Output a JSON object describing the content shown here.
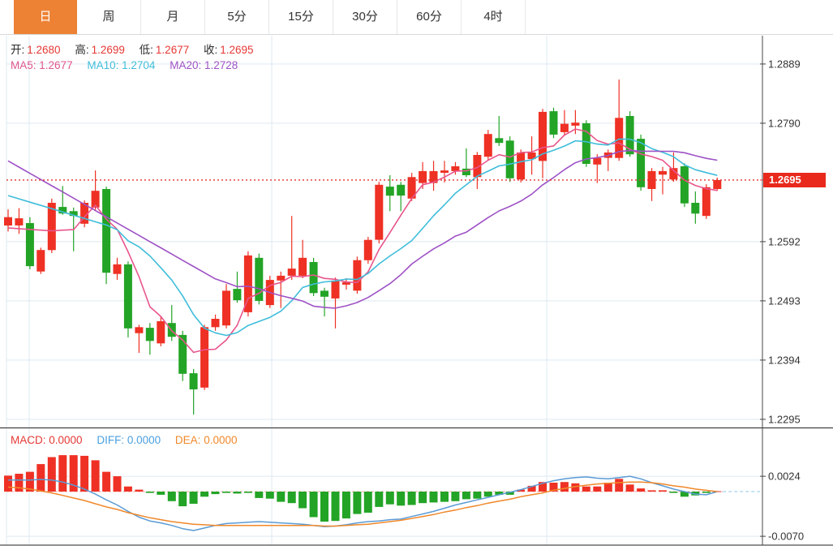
{
  "tabs": {
    "items": [
      {
        "id": "day",
        "label": "日",
        "active": true
      },
      {
        "id": "week",
        "label": "周",
        "active": false
      },
      {
        "id": "month",
        "label": "月",
        "active": false
      },
      {
        "id": "5min",
        "label": "5分",
        "active": false
      },
      {
        "id": "15min",
        "label": "15分",
        "active": false
      },
      {
        "id": "30min",
        "label": "30分",
        "active": false
      },
      {
        "id": "60min",
        "label": "60分",
        "active": false
      },
      {
        "id": "4hour",
        "label": "4时",
        "active": false
      }
    ]
  },
  "ohlc": {
    "open_label": "开:",
    "open": "1.2680",
    "high_label": "高:",
    "high": "1.2699",
    "low_label": "低:",
    "low": "1.2677",
    "close_label": "收:",
    "close": "1.2695"
  },
  "ma_legend": {
    "ma5_label": "MA5:",
    "ma5_value": "1.2677",
    "ma10_label": "MA10:",
    "ma10_value": "1.2704",
    "ma20_label": "MA20:",
    "ma20_value": "1.2728"
  },
  "macd_legend": {
    "macd_label": "MACD:",
    "macd_value": "0.0000",
    "diff_label": "DIFF:",
    "diff_value": "0.0000",
    "dea_label": "DEA:",
    "dea_value": "0.0000"
  },
  "price_axis": {
    "ticks": [
      "1.2889",
      "1.2790",
      "1.2592",
      "1.2493",
      "1.2394",
      "1.2295"
    ],
    "tick_values": [
      1.2889,
      1.279,
      1.2592,
      1.2493,
      1.2394,
      1.2295
    ],
    "last_price": "1.2695",
    "last_price_value": 1.2695
  },
  "macd_axis": {
    "ticks": [
      "0.0024",
      "-0.0070"
    ],
    "tick_values": [
      0.0024,
      -0.007
    ]
  },
  "colors": {
    "up": "#ee3124",
    "down": "#23a426",
    "ma5": "#e8558c",
    "ma10": "#3fbdda",
    "ma20": "#9e52c6",
    "diff_line": "#5b9bd5",
    "dea_line": "#f0882a",
    "tab_active": "#ed8235",
    "price_tag_bg": "#e8291c",
    "grid": "#dde9f2",
    "dotted_price": "#e03131",
    "axis_line": "#444444"
  },
  "chart_data": [
    {
      "type": "candlestick",
      "pane": "price",
      "title": "",
      "ylim": [
        1.2281,
        1.2936
      ],
      "yticks": [
        1.2889,
        1.279,
        1.2592,
        1.2493,
        1.2394,
        1.2295
      ],
      "current_price": 1.2695,
      "time_gridlines_x": [
        36,
        335,
        674
      ],
      "ma_overlays": [
        {
          "name": "MA5",
          "period": 5,
          "left_anchor": 1.2615,
          "color_key": "ma5"
        },
        {
          "name": "MA10",
          "period": 10,
          "left_anchor": 1.2669,
          "color_key": "ma10"
        },
        {
          "name": "MA20",
          "period": 20,
          "left_anchor": 1.2727,
          "color_key": "ma20"
        }
      ],
      "candles_ohlc": [
        [
          1.2619,
          1.2646,
          1.2609,
          1.2633
        ],
        [
          1.2619,
          1.2648,
          1.2605,
          1.2631
        ],
        [
          1.2623,
          1.2633,
          1.2546,
          1.2551
        ],
        [
          1.2542,
          1.2582,
          1.2538,
          1.2578
        ],
        [
          1.2578,
          1.2664,
          1.2573,
          1.2657
        ],
        [
          1.265,
          1.2685,
          1.2637,
          1.2639
        ],
        [
          1.2643,
          1.2649,
          1.2576,
          1.2635
        ],
        [
          1.2622,
          1.2661,
          1.2616,
          1.2657
        ],
        [
          1.2649,
          1.2711,
          1.2645,
          1.2677
        ],
        [
          1.268,
          1.2684,
          1.2521,
          1.254
        ],
        [
          1.2538,
          1.2565,
          1.2528,
          1.2554
        ],
        [
          1.2554,
          1.2559,
          1.2432,
          1.2447
        ],
        [
          1.2439,
          1.2453,
          1.2406,
          1.2449
        ],
        [
          1.2448,
          1.2456,
          1.2403,
          1.2426
        ],
        [
          1.2422,
          1.2466,
          1.2417,
          1.2459
        ],
        [
          1.2456,
          1.2486,
          1.2426,
          1.2433
        ],
        [
          1.2436,
          1.2443,
          1.2359,
          1.2371
        ],
        [
          1.2372,
          1.2379,
          1.2303,
          1.2345
        ],
        [
          1.2348,
          1.2453,
          1.2344,
          1.2449
        ],
        [
          1.2449,
          1.247,
          1.2443,
          1.2463
        ],
        [
          1.2452,
          1.2521,
          1.2447,
          1.251
        ],
        [
          1.2513,
          1.2542,
          1.249,
          1.2494
        ],
        [
          1.2474,
          1.2576,
          1.2467,
          1.2569
        ],
        [
          1.2565,
          1.2572,
          1.2487,
          1.2493
        ],
        [
          1.2486,
          1.2535,
          1.2481,
          1.2528
        ],
        [
          1.2527,
          1.2542,
          1.2481,
          1.2535
        ],
        [
          1.2535,
          1.2635,
          1.2528,
          1.2547
        ],
        [
          1.2535,
          1.2595,
          1.2531,
          1.2565
        ],
        [
          1.2558,
          1.2565,
          1.2501,
          1.2506
        ],
        [
          1.251,
          1.2515,
          1.2467,
          1.25
        ],
        [
          1.2497,
          1.2532,
          1.2447,
          1.2527
        ],
        [
          1.252,
          1.2531,
          1.2512,
          1.2524
        ],
        [
          1.251,
          1.2567,
          1.2505,
          1.2561
        ],
        [
          1.2561,
          1.26,
          1.2555,
          1.2595
        ],
        [
          1.2595,
          1.2692,
          1.2589,
          1.2687
        ],
        [
          1.2684,
          1.2703,
          1.2643,
          1.2669
        ],
        [
          1.2687,
          1.2692,
          1.2643,
          1.2669
        ],
        [
          1.2664,
          1.2707,
          1.266,
          1.27
        ],
        [
          1.269,
          1.2725,
          1.268,
          1.271
        ],
        [
          1.269,
          1.2727,
          1.2677,
          1.271
        ],
        [
          1.2707,
          1.2727,
          1.2691,
          1.2711
        ],
        [
          1.271,
          1.2725,
          1.2704,
          1.2718
        ],
        [
          1.2714,
          1.2748,
          1.27,
          1.2703
        ],
        [
          1.27,
          1.2742,
          1.268,
          1.2737
        ],
        [
          1.2734,
          1.2779,
          1.2729,
          1.2772
        ],
        [
          1.2765,
          1.2802,
          1.2752,
          1.2757
        ],
        [
          1.2761,
          1.2768,
          1.2692,
          1.2698
        ],
        [
          1.2696,
          1.2746,
          1.2691,
          1.2741
        ],
        [
          1.273,
          1.2768,
          1.2704,
          1.2741
        ],
        [
          1.2727,
          1.2814,
          1.2698,
          1.2809
        ],
        [
          1.281,
          1.2816,
          1.2765,
          1.2771
        ],
        [
          1.2775,
          1.2812,
          1.277,
          1.2789
        ],
        [
          1.2786,
          1.2812,
          1.2772,
          1.2791
        ],
        [
          1.279,
          1.2795,
          1.2717,
          1.2722
        ],
        [
          1.2721,
          1.2738,
          1.269,
          1.2732
        ],
        [
          1.2732,
          1.2746,
          1.271,
          1.2741
        ],
        [
          1.2732,
          1.2863,
          1.2727,
          1.2799
        ],
        [
          1.2802,
          1.281,
          1.2734,
          1.2738
        ],
        [
          1.2764,
          1.2771,
          1.2677,
          1.2683
        ],
        [
          1.268,
          1.2715,
          1.266,
          1.271
        ],
        [
          1.2704,
          1.2717,
          1.2671,
          1.271
        ],
        [
          1.2696,
          1.2741,
          1.2692,
          1.2715
        ],
        [
          1.2718,
          1.2723,
          1.265,
          1.2656
        ],
        [
          1.2657,
          1.2676,
          1.2622,
          1.2639
        ],
        [
          1.2635,
          1.2688,
          1.263,
          1.2683
        ],
        [
          1.268,
          1.2699,
          1.2677,
          1.2695
        ]
      ]
    },
    {
      "type": "bar",
      "pane": "macd",
      "ylim": [
        -0.0084,
        0.0099
      ],
      "yticks": [
        0.0024,
        -0.007
      ],
      "histogram": [
        0.0025,
        0.0028,
        0.0031,
        0.0043,
        0.0054,
        0.0057,
        0.0057,
        0.0056,
        0.0049,
        0.0031,
        0.0024,
        0.0008,
        0.0003,
        -0.0002,
        -0.0005,
        -0.0015,
        -0.0023,
        -0.0019,
        -0.0008,
        -0.0004,
        -0.0002,
        -0.0003,
        -0.0002,
        -0.001,
        -0.0011,
        -0.0016,
        -0.0018,
        -0.0026,
        -0.004,
        -0.0047,
        -0.0046,
        -0.0042,
        -0.0035,
        -0.0033,
        -0.0024,
        -0.002,
        -0.0022,
        -0.0021,
        -0.0018,
        -0.0017,
        -0.0016,
        -0.0015,
        -0.0012,
        -0.0011,
        -0.0008,
        -0.0005,
        -0.0005,
        0.0003,
        0.0009,
        0.0015,
        0.0014,
        0.0015,
        0.0013,
        0.0008,
        0.0008,
        0.0014,
        0.002,
        0.0011,
        0.0005,
        0.0002,
        0.0002,
        -0.0002,
        -0.0008,
        -0.0006,
        -0.0002,
        0.0
      ],
      "series": [
        {
          "name": "DIFF",
          "values": [
            0.0018,
            0.0018,
            0.0018,
            0.0019,
            0.0018,
            0.0015,
            0.001,
            0.0004,
            -0.0004,
            -0.0013,
            -0.0021,
            -0.0031,
            -0.004,
            -0.0046,
            -0.0049,
            -0.0053,
            -0.0058,
            -0.0061,
            -0.0057,
            -0.0053,
            -0.005,
            -0.0049,
            -0.0048,
            -0.0047,
            -0.0048,
            -0.0049,
            -0.005,
            -0.0051,
            -0.0053,
            -0.0055,
            -0.0054,
            -0.0052,
            -0.0049,
            -0.0047,
            -0.0046,
            -0.0044,
            -0.0043,
            -0.0039,
            -0.0035,
            -0.0031,
            -0.0026,
            -0.0021,
            -0.0017,
            -0.0013,
            -0.0009,
            -0.0005,
            -0.0001,
            0.0003,
            0.0008,
            0.0013,
            0.0017,
            0.002,
            0.0022,
            0.0023,
            0.0021,
            0.002,
            0.0022,
            0.0024,
            0.002,
            0.0014,
            0.0009,
            0.0004,
            0.0,
            -0.0004,
            -0.0005,
            0.0
          ]
        },
        {
          "name": "DEA",
          "values": [
            0.0007,
            0.0006,
            0.0004,
            0.0001,
            -0.0002,
            -0.0006,
            -0.001,
            -0.0014,
            -0.0019,
            -0.0024,
            -0.0028,
            -0.0033,
            -0.0037,
            -0.0041,
            -0.0044,
            -0.0047,
            -0.0049,
            -0.0051,
            -0.0052,
            -0.0053,
            -0.0053,
            -0.0053,
            -0.0053,
            -0.0053,
            -0.0053,
            -0.0053,
            -0.0053,
            -0.0053,
            -0.0053,
            -0.0054,
            -0.0054,
            -0.0053,
            -0.0052,
            -0.0051,
            -0.0049,
            -0.0047,
            -0.0045,
            -0.0042,
            -0.0039,
            -0.0036,
            -0.0032,
            -0.0029,
            -0.0025,
            -0.0022,
            -0.0018,
            -0.0015,
            -0.0012,
            -0.0008,
            -0.0005,
            -0.0002,
            0.0002,
            0.0005,
            0.0008,
            0.001,
            0.0012,
            0.0013,
            0.0014,
            0.0015,
            0.0015,
            0.0014,
            0.0012,
            0.0009,
            0.0007,
            0.0004,
            0.0002,
            0.0
          ]
        }
      ]
    }
  ]
}
